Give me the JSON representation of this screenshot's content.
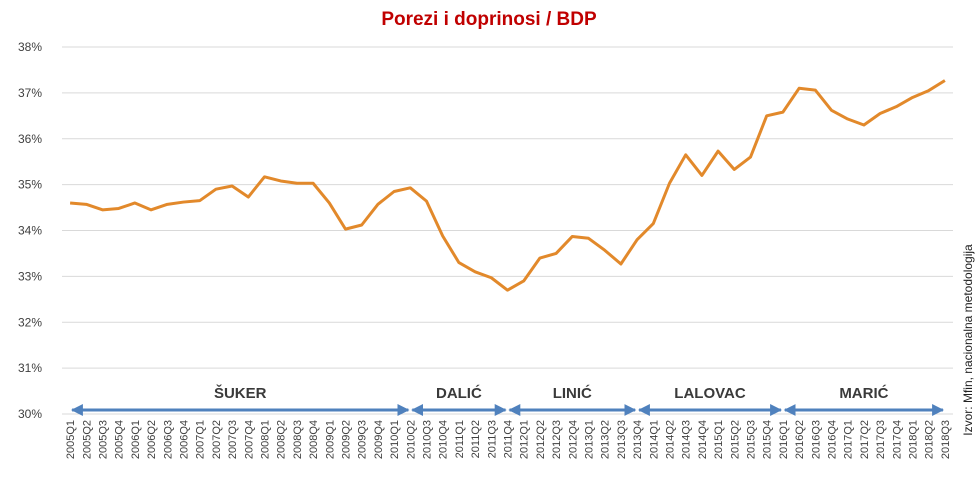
{
  "chart_data": {
    "type": "line",
    "title": "Porezi i doprinosi / BDP",
    "categories": [
      "2005Q1",
      "2005Q2",
      "2005Q3",
      "2005Q4",
      "2006Q1",
      "2006Q2",
      "2006Q3",
      "2006Q4",
      "2007Q1",
      "2007Q2",
      "2007Q3",
      "2007Q4",
      "2008Q1",
      "2008Q2",
      "2008Q3",
      "2008Q4",
      "2009Q1",
      "2009Q2",
      "2009Q3",
      "2009Q4",
      "2010Q1",
      "2010Q2",
      "2010Q3",
      "2010Q4",
      "2011Q1",
      "2011Q2",
      "2011Q3",
      "2011Q4",
      "2012Q1",
      "2012Q2",
      "2012Q3",
      "2012Q4",
      "2013Q1",
      "2013Q2",
      "2013Q3",
      "2013Q4",
      "2014Q1",
      "2014Q2",
      "2014Q3",
      "2014Q4",
      "2015Q1",
      "2015Q2",
      "2015Q3",
      "2015Q4",
      "2016Q1",
      "2016Q2",
      "2016Q3",
      "2016Q4",
      "2017Q1",
      "2017Q2",
      "2017Q3",
      "2017Q4",
      "2018Q1",
      "2018Q2",
      "2018Q3"
    ],
    "series": [
      {
        "name": "Porezi i doprinosi / BDP",
        "color": "#e2892b",
        "values": [
          34.6,
          34.57,
          34.45,
          34.48,
          34.6,
          34.45,
          34.57,
          34.62,
          34.65,
          34.9,
          34.97,
          34.73,
          35.17,
          35.08,
          35.03,
          35.03,
          34.6,
          34.03,
          34.12,
          34.57,
          34.85,
          34.93,
          34.64,
          33.88,
          33.3,
          33.1,
          32.97,
          32.7,
          32.9,
          33.4,
          33.5,
          33.87,
          33.83,
          33.57,
          33.27,
          33.8,
          34.15,
          35.03,
          35.65,
          35.2,
          35.73,
          35.33,
          35.6,
          36.5,
          36.58,
          37.1,
          37.06,
          36.62,
          36.43,
          36.3,
          36.55,
          36.7,
          36.9,
          37.05,
          37.27
        ]
      }
    ],
    "ylim": [
      30,
      38
    ],
    "yticks": [
      {
        "value": 30,
        "label": "30%"
      },
      {
        "value": 31,
        "label": "31%"
      },
      {
        "value": 32,
        "label": "32%"
      },
      {
        "value": 33,
        "label": "33%"
      },
      {
        "value": 34,
        "label": "34%"
      },
      {
        "value": 35,
        "label": "35%"
      },
      {
        "value": 36,
        "label": "36%"
      },
      {
        "value": 37,
        "label": "37%"
      },
      {
        "value": 38,
        "label": "38%"
      }
    ],
    "grid": true,
    "periods": [
      {
        "label": "ŠUKER",
        "from": "2005Q1",
        "to": "2010Q2"
      },
      {
        "label": "DALIĆ",
        "from": "2010Q2",
        "to": "2011Q4"
      },
      {
        "label": "LINIĆ",
        "from": "2011Q4",
        "to": "2013Q4"
      },
      {
        "label": "LALOVAC",
        "from": "2013Q4",
        "to": "2016Q1"
      },
      {
        "label": "MARIĆ",
        "from": "2016Q1",
        "to": "2018Q3"
      }
    ],
    "source": "Izvor: Mfin, nacionalna metodologija"
  }
}
